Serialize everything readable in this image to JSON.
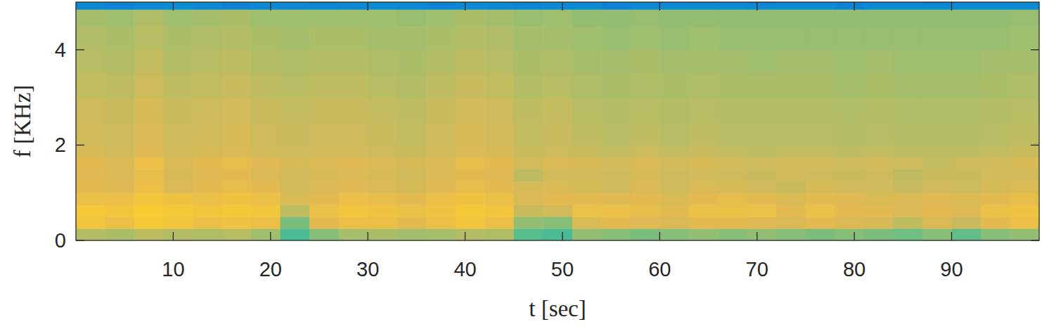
{
  "chart_data": {
    "type": "heatmap",
    "x_label": "t [sec]",
    "y_label": "f [KHz]",
    "xlim": [
      0,
      99
    ],
    "ylim": [
      0,
      5
    ],
    "xticks": [
      10,
      20,
      30,
      40,
      50,
      60,
      70,
      80,
      90
    ],
    "yticks": [
      0,
      2,
      4
    ],
    "grid": false,
    "x_edges": [
      0,
      3,
      6,
      9,
      12,
      15,
      18,
      21,
      24,
      27,
      30,
      33,
      36,
      39,
      42,
      45,
      48,
      51,
      54,
      57,
      60,
      63,
      66,
      69,
      72,
      75,
      78,
      81,
      84,
      87,
      90,
      93,
      96,
      99
    ],
    "y_edges": [
      0,
      0.25,
      0.5,
      0.75,
      1,
      1.25,
      1.5,
      1.75,
      2,
      2.5,
      3,
      3.5,
      4,
      4.5,
      4.85,
      5
    ],
    "zlim": [
      0,
      1
    ],
    "z": [
      [
        0.78,
        0.76,
        0.8,
        0.78,
        0.77,
        0.79,
        0.74,
        0.6,
        0.7,
        0.75,
        0.76,
        0.74,
        0.75,
        0.78,
        0.77,
        0.62,
        0.6,
        0.72,
        0.7,
        0.68,
        0.7,
        0.72,
        0.7,
        0.72,
        0.7,
        0.68,
        0.7,
        0.68,
        0.66,
        0.7,
        0.64,
        0.7,
        0.72
      ],
      [
        0.92,
        0.9,
        0.93,
        0.92,
        0.9,
        0.91,
        0.9,
        0.68,
        0.88,
        0.9,
        0.9,
        0.88,
        0.9,
        0.92,
        0.9,
        0.72,
        0.7,
        0.86,
        0.88,
        0.87,
        0.86,
        0.88,
        0.88,
        0.87,
        0.86,
        0.88,
        0.86,
        0.85,
        0.8,
        0.86,
        0.82,
        0.88,
        0.9
      ],
      [
        0.93,
        0.92,
        0.94,
        0.93,
        0.92,
        0.93,
        0.92,
        0.8,
        0.9,
        0.92,
        0.91,
        0.9,
        0.91,
        0.93,
        0.92,
        0.82,
        0.84,
        0.9,
        0.9,
        0.89,
        0.88,
        0.9,
        0.9,
        0.9,
        0.88,
        0.9,
        0.88,
        0.88,
        0.86,
        0.88,
        0.87,
        0.9,
        0.91
      ],
      [
        0.9,
        0.9,
        0.92,
        0.91,
        0.9,
        0.91,
        0.9,
        0.86,
        0.88,
        0.9,
        0.89,
        0.88,
        0.9,
        0.91,
        0.9,
        0.86,
        0.88,
        0.88,
        0.87,
        0.88,
        0.86,
        0.88,
        0.89,
        0.88,
        0.86,
        0.88,
        0.87,
        0.86,
        0.86,
        0.87,
        0.86,
        0.88,
        0.89
      ],
      [
        0.88,
        0.87,
        0.9,
        0.86,
        0.88,
        0.89,
        0.88,
        0.84,
        0.86,
        0.87,
        0.86,
        0.85,
        0.87,
        0.89,
        0.88,
        0.85,
        0.86,
        0.85,
        0.84,
        0.86,
        0.84,
        0.86,
        0.85,
        0.84,
        0.82,
        0.85,
        0.84,
        0.84,
        0.82,
        0.84,
        0.83,
        0.85,
        0.86
      ],
      [
        0.87,
        0.86,
        0.89,
        0.85,
        0.87,
        0.88,
        0.86,
        0.84,
        0.85,
        0.86,
        0.85,
        0.84,
        0.86,
        0.88,
        0.87,
        0.8,
        0.84,
        0.84,
        0.83,
        0.85,
        0.83,
        0.84,
        0.83,
        0.82,
        0.84,
        0.83,
        0.82,
        0.83,
        0.8,
        0.82,
        0.82,
        0.84,
        0.84
      ],
      [
        0.88,
        0.86,
        0.9,
        0.86,
        0.88,
        0.89,
        0.87,
        0.85,
        0.86,
        0.87,
        0.86,
        0.85,
        0.86,
        0.89,
        0.88,
        0.84,
        0.86,
        0.85,
        0.84,
        0.86,
        0.84,
        0.85,
        0.84,
        0.83,
        0.84,
        0.84,
        0.83,
        0.84,
        0.83,
        0.81,
        0.83,
        0.84,
        0.85
      ],
      [
        0.85,
        0.84,
        0.87,
        0.84,
        0.85,
        0.86,
        0.84,
        0.83,
        0.84,
        0.84,
        0.83,
        0.82,
        0.84,
        0.86,
        0.85,
        0.82,
        0.83,
        0.82,
        0.81,
        0.83,
        0.81,
        0.82,
        0.81,
        0.8,
        0.81,
        0.81,
        0.8,
        0.81,
        0.8,
        0.8,
        0.8,
        0.81,
        0.82
      ],
      [
        0.84,
        0.83,
        0.86,
        0.83,
        0.84,
        0.85,
        0.83,
        0.82,
        0.83,
        0.83,
        0.82,
        0.81,
        0.83,
        0.85,
        0.84,
        0.81,
        0.82,
        0.8,
        0.79,
        0.8,
        0.79,
        0.8,
        0.79,
        0.79,
        0.79,
        0.79,
        0.78,
        0.79,
        0.78,
        0.78,
        0.78,
        0.79,
        0.8
      ],
      [
        0.83,
        0.82,
        0.85,
        0.82,
        0.83,
        0.84,
        0.82,
        0.81,
        0.82,
        0.82,
        0.81,
        0.8,
        0.82,
        0.84,
        0.83,
        0.8,
        0.81,
        0.79,
        0.78,
        0.79,
        0.78,
        0.79,
        0.78,
        0.78,
        0.78,
        0.78,
        0.77,
        0.78,
        0.77,
        0.77,
        0.77,
        0.78,
        0.79
      ],
      [
        0.81,
        0.8,
        0.83,
        0.8,
        0.81,
        0.82,
        0.8,
        0.79,
        0.8,
        0.8,
        0.79,
        0.78,
        0.8,
        0.82,
        0.81,
        0.78,
        0.79,
        0.77,
        0.76,
        0.77,
        0.76,
        0.77,
        0.76,
        0.76,
        0.76,
        0.76,
        0.75,
        0.76,
        0.75,
        0.75,
        0.75,
        0.76,
        0.77
      ],
      [
        0.79,
        0.78,
        0.81,
        0.78,
        0.79,
        0.8,
        0.78,
        0.77,
        0.78,
        0.78,
        0.77,
        0.76,
        0.78,
        0.8,
        0.79,
        0.76,
        0.77,
        0.75,
        0.75,
        0.76,
        0.75,
        0.75,
        0.75,
        0.74,
        0.75,
        0.75,
        0.74,
        0.75,
        0.74,
        0.74,
        0.74,
        0.75,
        0.75
      ],
      [
        0.77,
        0.76,
        0.79,
        0.76,
        0.77,
        0.78,
        0.76,
        0.75,
        0.76,
        0.76,
        0.75,
        0.75,
        0.76,
        0.78,
        0.77,
        0.75,
        0.75,
        0.74,
        0.73,
        0.74,
        0.73,
        0.74,
        0.73,
        0.73,
        0.73,
        0.73,
        0.73,
        0.73,
        0.73,
        0.73,
        0.73,
        0.73,
        0.74
      ],
      [
        0.75,
        0.74,
        0.77,
        0.74,
        0.75,
        0.76,
        0.74,
        0.74,
        0.74,
        0.74,
        0.74,
        0.73,
        0.74,
        0.76,
        0.75,
        0.73,
        0.74,
        0.72,
        0.72,
        0.73,
        0.72,
        0.72,
        0.72,
        0.72,
        0.72,
        0.72,
        0.72,
        0.72,
        0.72,
        0.72,
        0.72,
        0.72,
        0.73
      ],
      [
        0.3,
        0.28,
        0.3,
        0.32,
        0.3,
        0.28,
        0.3,
        0.3,
        0.29,
        0.3,
        0.31,
        0.3,
        0.28,
        0.3,
        0.3,
        0.29,
        0.3,
        0.3,
        0.28,
        0.3,
        0.3,
        0.31,
        0.3,
        0.29,
        0.3,
        0.3,
        0.28,
        0.3,
        0.3,
        0.29,
        0.3,
        0.3,
        0.3
      ]
    ]
  }
}
